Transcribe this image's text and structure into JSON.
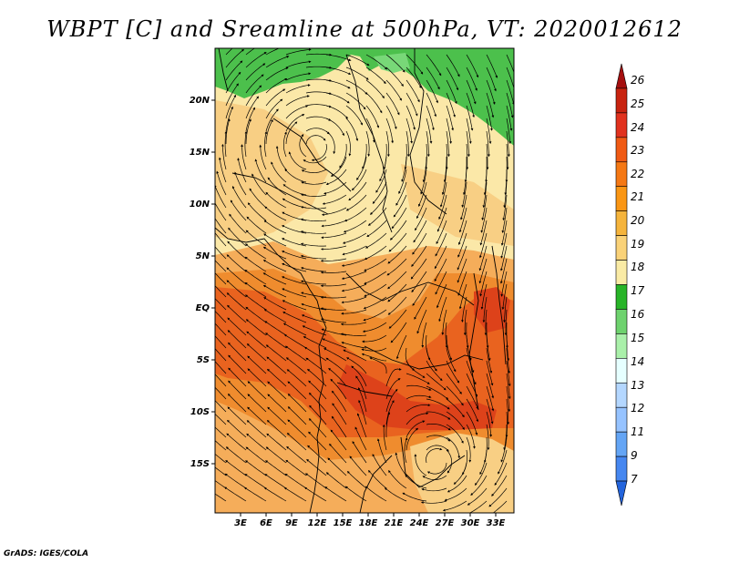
{
  "title": "WBPT [C] and Sreamline at 500hPa, VT: 2020012612",
  "footer": "GrADS: IGES/COLA",
  "colors": {
    "regions": {
      "green_dark": "#4cc04c",
      "green_light": "#78d878",
      "pale_yellow": "#fbe8a8",
      "light_orange": "#f8cf84",
      "orange": "#f5ad5a",
      "dark_orange": "#ef8c2e",
      "red_orange": "#e9631f",
      "red": "#dd421a"
    },
    "lines": "#000000"
  },
  "map": {
    "lat_labels": [
      "20N",
      "15N",
      "10N",
      "5N",
      "EQ",
      "5S",
      "10S",
      "15S"
    ],
    "lon_labels": [
      "3E",
      "6E",
      "9E",
      "12E",
      "15E",
      "18E",
      "21E",
      "24E",
      "27E",
      "30E",
      "33E"
    ]
  },
  "colorbar": {
    "labels": [
      "26",
      "25",
      "24",
      "23",
      "22",
      "21",
      "20",
      "19",
      "18",
      "17",
      "16",
      "15",
      "14",
      "13",
      "12",
      "11",
      "9",
      "7"
    ],
    "colors": [
      "#a50f0f",
      "#c8230f",
      "#e1321e",
      "#f05a14",
      "#f57814",
      "#fa9614",
      "#f5b43c",
      "#fad278",
      "#faeba5",
      "#28b428",
      "#6ed26e",
      "#aaf0aa",
      "#e6ffff",
      "#b4d7ff",
      "#96c3ff",
      "#64a5f5",
      "#4687f0",
      "#2364dc"
    ]
  }
}
